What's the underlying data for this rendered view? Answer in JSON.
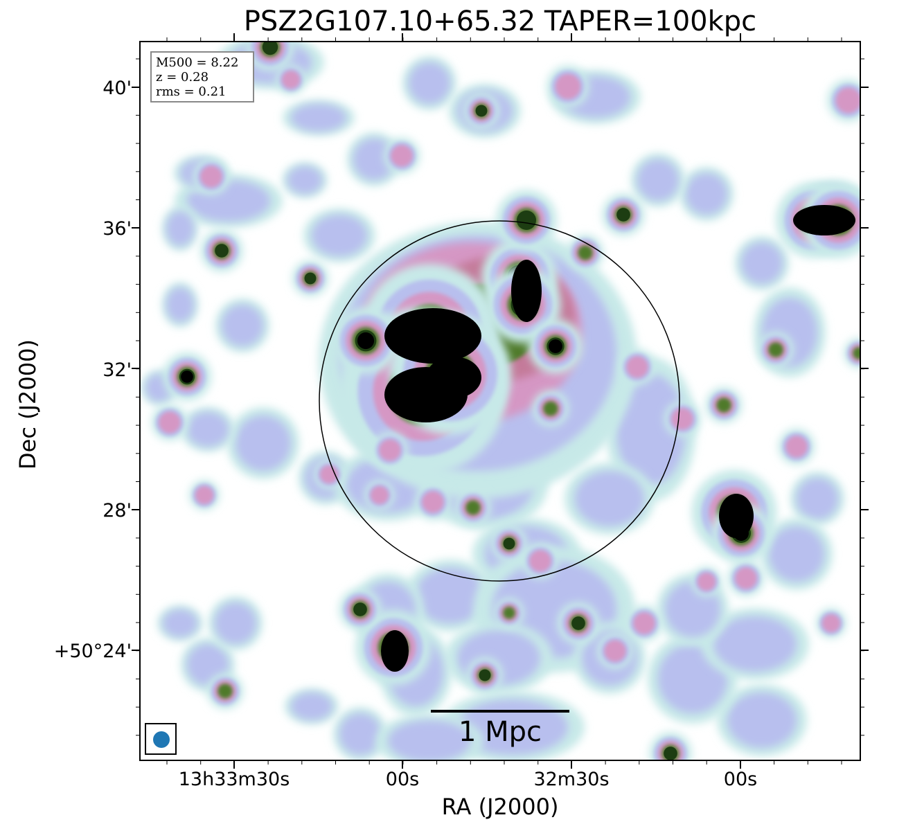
{
  "figure": {
    "title": "PSZ2G107.10+65.32 TAPER=100kpc",
    "xlabel": "RA (J2000)",
    "ylabel": "Dec (J2000)",
    "xticks": [
      "13h33m30s",
      "00s",
      "32m30s",
      "00s"
    ],
    "yticks": [
      "40'",
      "36'",
      "32'",
      "28'",
      "+50°24'"
    ]
  },
  "legend": {
    "m500": "M500 = 8.22",
    "z": "z = 0.28",
    "rms": "rms = 0.21"
  },
  "scalebar": {
    "label": "1 Mpc"
  },
  "colors": {
    "colormap": [
      "#ffffff",
      "#c7e9e8",
      "#b8bfee",
      "#d597c4",
      "#c47a9a",
      "#4f7a2a",
      "#1d3d12",
      "#000000"
    ],
    "beam": "#1f77b4",
    "frame": "#000000"
  }
}
